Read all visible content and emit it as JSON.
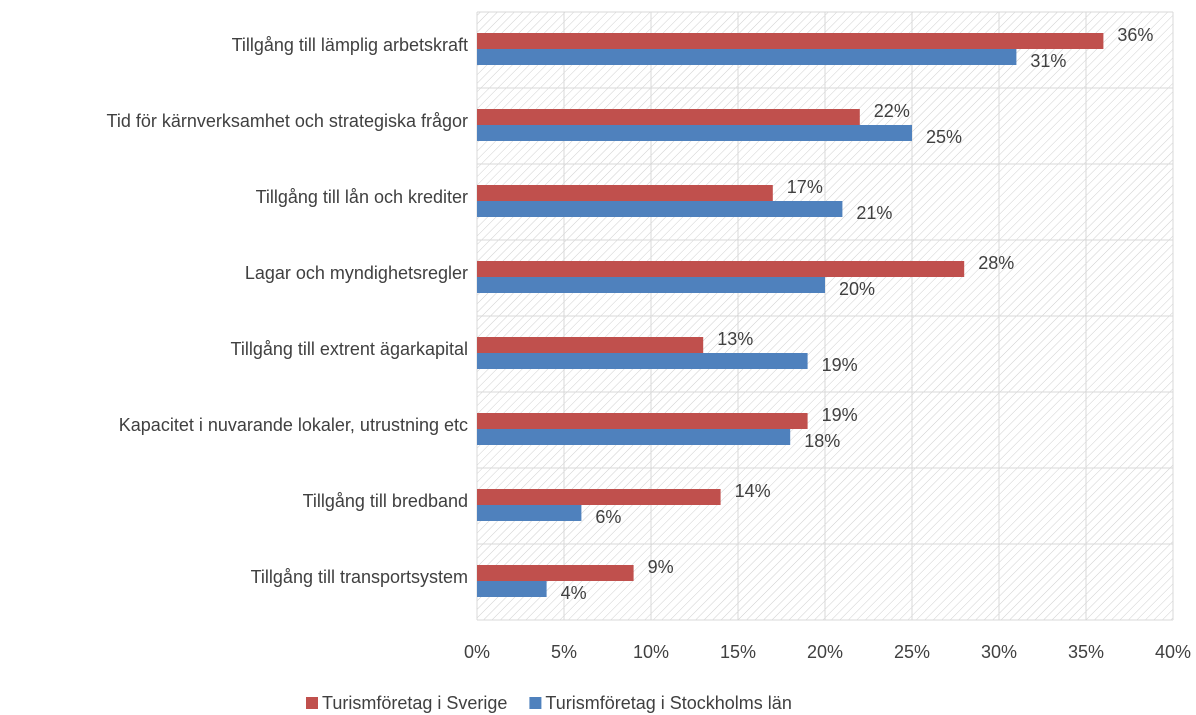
{
  "chart_data": {
    "type": "bar",
    "orientation": "horizontal",
    "categories": [
      "Tillgång till lämplig arbetskraft",
      "Tid för kärnverksamhet och strategiska frågor",
      "Tillgång till lån och krediter",
      "Lagar och myndighetsregler",
      "Tillgång till extrent ägarkapital",
      "Kapacitet i nuvarande lokaler, utrustning etc",
      "Tillgång till bredband",
      "Tillgång till transportsystem"
    ],
    "series": [
      {
        "name": "Turismföretag i Sverige",
        "color": "#c0504d",
        "values": [
          36,
          22,
          17,
          28,
          13,
          19,
          14,
          9
        ],
        "value_labels": [
          "36%",
          "22%",
          "17%",
          "28%",
          "13%",
          "19%",
          "14%",
          "9%"
        ]
      },
      {
        "name": "Turismföretag i Stockholms län",
        "color": "#4f81bd",
        "values": [
          31,
          25,
          21,
          20,
          19,
          18,
          6,
          4
        ],
        "value_labels": [
          "31%",
          "25%",
          "21%",
          "20%",
          "19%",
          "18%",
          "6%",
          "4%"
        ]
      }
    ],
    "xlim": [
      0,
      40
    ],
    "xticks": [
      {
        "value": 0,
        "label": "0%"
      },
      {
        "value": 5,
        "label": "5%"
      },
      {
        "value": 10,
        "label": "10%"
      },
      {
        "value": 15,
        "label": "15%"
      },
      {
        "value": 20,
        "label": "20%"
      },
      {
        "value": 25,
        "label": "25%"
      },
      {
        "value": 30,
        "label": "30%"
      },
      {
        "value": 35,
        "label": "35%"
      },
      {
        "value": 40,
        "label": "40%"
      }
    ],
    "grid": true,
    "legend": "bottom"
  }
}
